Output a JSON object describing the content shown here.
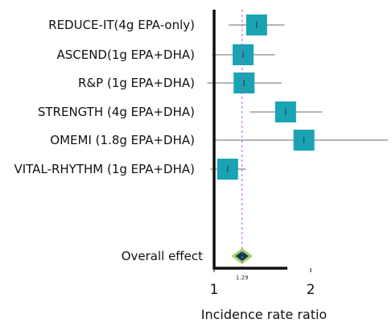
{
  "chart_data": {
    "type": "forest",
    "title": "",
    "xlabel": "Incidence rate ratio",
    "xlim": [
      1,
      2.8
    ],
    "xticks": [
      {
        "value": 1,
        "label": "1"
      },
      {
        "value": 2,
        "label": "2"
      }
    ],
    "reference_line": {
      "value": 1.29,
      "label": "1.29"
    },
    "studies": [
      {
        "label": "REDUCE-IT(4g EPA-only)",
        "estimate": 1.44,
        "ci_low": 1.15,
        "ci_high": 1.73
      },
      {
        "label": "ASCEND(1g EPA+DHA)",
        "estimate": 1.3,
        "ci_low": 0.98,
        "ci_high": 1.63
      },
      {
        "label": "R&P (1g EPA+DHA)",
        "estimate": 1.31,
        "ci_low": 0.93,
        "ci_high": 1.7
      },
      {
        "label": "STRENGTH (4g EPA+DHA)",
        "estimate": 1.74,
        "ci_low": 1.37,
        "ci_high": 2.12
      },
      {
        "label": "OMEMI (1.8g EPA+DHA)",
        "estimate": 1.93,
        "ci_low": 1.0,
        "ci_high": 2.8
      },
      {
        "label": "VITAL-RHYTHM (1g EPA+DHA)",
        "estimate": 1.14,
        "ci_low": 0.96,
        "ci_high": 1.33
      }
    ],
    "overall": {
      "label": "Overall effect",
      "estimate": 1.29,
      "ci_low": 1.2,
      "ci_high": 1.38
    },
    "colors": {
      "study_box": "#1aa3b3",
      "whisker": "#6b6b6b",
      "reference_line": "#b05bd6",
      "diamond_fill": "#0f3f55",
      "diamond_outline": "#a6d36a",
      "axis": "#111111"
    }
  }
}
